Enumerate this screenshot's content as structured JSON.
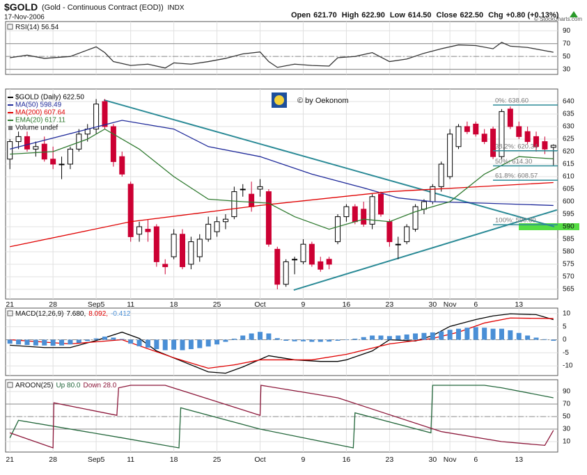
{
  "header": {
    "symbol": "$GOLD",
    "name": "(Gold - Continuous Contract (EOD))",
    "exchange": "INDX",
    "date": "17-Nov-2006",
    "quote": [
      {
        "label": "Open",
        "value": "621.70"
      },
      {
        "label": "High",
        "value": "622.90"
      },
      {
        "label": "Low",
        "value": "614.50"
      },
      {
        "label": "Close",
        "value": "622.50"
      },
      {
        "label": "Chg",
        "value": "+0.80 (+0.13%)"
      }
    ],
    "copyright": "© StockCharts.com"
  },
  "chart_data": [
    {
      "type": "line",
      "title": "RSI(14) 56.54",
      "xlim": [
        -0.5,
        63.5
      ],
      "ylim": [
        22,
        104.4
      ],
      "yticks": [
        90,
        70,
        50,
        30
      ],
      "bands": [
        70,
        30
      ],
      "midline": 50,
      "grid": true,
      "series": [
        {
          "color": "#333333",
          "x": [
            0,
            2,
            4,
            7,
            9,
            10,
            11,
            12,
            14,
            16,
            18,
            19,
            21,
            23,
            25,
            27,
            29,
            30,
            31,
            33,
            35,
            37,
            38,
            40,
            42,
            44,
            46,
            48,
            50,
            52,
            54,
            56,
            57,
            58,
            60,
            63
          ],
          "values": [
            48,
            52,
            47,
            50,
            60,
            65,
            56,
            42,
            36,
            38,
            32,
            40,
            38,
            42,
            47,
            54,
            57,
            42,
            33,
            38,
            36,
            35,
            48,
            50,
            56,
            42,
            46,
            55,
            62,
            68,
            67,
            62,
            72,
            66,
            64,
            56.54
          ]
        }
      ]
    },
    {
      "type": "candlestick",
      "xlim": [
        -0.5,
        63.5
      ],
      "ylim": [
        561.1,
        645
      ],
      "yticks": [
        565,
        570,
        575,
        580,
        585,
        590,
        595,
        600,
        605,
        610,
        615,
        620,
        625,
        630,
        635,
        640
      ],
      "grid": true,
      "categories": [
        "21",
        null,
        null,
        null,
        null,
        "28",
        null,
        null,
        null,
        null,
        "Sep5",
        null,
        null,
        null,
        "11",
        null,
        null,
        null,
        null,
        "18",
        null,
        null,
        null,
        null,
        "25",
        null,
        null,
        null,
        null,
        "Oct",
        null,
        null,
        null,
        null,
        "9",
        null,
        null,
        null,
        null,
        "16",
        null,
        null,
        null,
        null,
        "23",
        null,
        null,
        null,
        null,
        "30",
        null,
        "Nov",
        null,
        null,
        "6",
        null,
        null,
        null,
        null,
        "13",
        null,
        null,
        null,
        null
      ],
      "series": [
        {
          "name": "$GOLD (Daily) 622.50",
          "color": "#000000",
          "up_color": "#000000",
          "down_color": "#cc0033",
          "open": [
            617,
            624,
            626,
            621,
            623,
            617,
            615,
            615,
            621,
            627,
            629,
            640,
            630,
            618,
            607,
            587,
            589,
            590,
            575,
            578,
            587,
            575,
            578,
            585,
            588,
            592,
            594,
            605,
            603,
            605,
            604,
            581,
            567,
            577,
            576,
            583,
            576,
            577,
            584,
            594,
            598,
            597,
            591,
            603,
            592,
            583,
            584,
            589,
            597,
            600,
            606,
            610,
            622,
            630,
            631,
            627,
            629,
            618,
            637,
            630,
            628,
            626,
            624,
            621.7
          ],
          "high": [
            625,
            628,
            628,
            624,
            626,
            622,
            618,
            622,
            629,
            631,
            641,
            641,
            631,
            620,
            608,
            592,
            593,
            591,
            577,
            589,
            589,
            586,
            587,
            594,
            594,
            595,
            606,
            607,
            608,
            609,
            605,
            582,
            577,
            578,
            585,
            584,
            578,
            578,
            595,
            599,
            599,
            600,
            603,
            604,
            593,
            586,
            591,
            599,
            601,
            607,
            616,
            629,
            631,
            632,
            632,
            629,
            630,
            637,
            638,
            632,
            630,
            628,
            626,
            622.9
          ],
          "low": [
            613,
            621,
            620,
            618,
            616,
            613,
            609,
            613,
            620,
            624,
            627,
            629,
            614,
            610,
            584,
            584,
            584,
            574,
            571,
            577,
            573,
            573,
            576,
            584,
            586,
            589,
            593,
            602,
            596,
            602,
            582,
            565,
            566,
            571,
            575,
            574,
            572,
            573,
            583,
            592,
            591,
            590,
            589,
            594,
            582,
            577,
            583,
            588,
            595,
            599,
            604,
            609,
            621,
            627,
            626,
            623,
            617,
            617,
            629,
            625,
            623,
            620,
            619,
            614.5
          ],
          "close": [
            624,
            626,
            621,
            622,
            617,
            615,
            615,
            621,
            627,
            629,
            639,
            630,
            616,
            611,
            586,
            590,
            588,
            576,
            574,
            587,
            574,
            584,
            585,
            591,
            592,
            593,
            604,
            605,
            598,
            606,
            583,
            567,
            576,
            577,
            583,
            575,
            573,
            575,
            594,
            598,
            592,
            591,
            602,
            595,
            584,
            583,
            590,
            598,
            600,
            606,
            615,
            627,
            630,
            628,
            627,
            624,
            618,
            636,
            630,
            626,
            624,
            622,
            621,
            622.5
          ]
        },
        {
          "name": "MA(50) 598.49",
          "color": "#1f2a9a",
          "x": [
            0,
            13,
            19,
            23,
            29,
            35,
            41,
            45,
            49,
            55,
            63
          ],
          "values": [
            621,
            632.5,
            629,
            622,
            618,
            611,
            605.5,
            601.5,
            600,
            599.4,
            598.49
          ]
        },
        {
          "name": "MA(200) 607.64",
          "color": "#e00000",
          "x": [
            0,
            14,
            29,
            44,
            63
          ],
          "values": [
            582,
            592,
            598.5,
            604,
            607.64
          ]
        },
        {
          "name": "EMA(20) 617.11",
          "color": "#2f7a2f",
          "x": [
            0,
            5,
            9,
            11,
            15,
            19,
            23,
            27,
            30,
            33,
            37,
            41,
            44,
            47,
            51,
            55,
            59,
            63
          ],
          "values": [
            619,
            620,
            625,
            629,
            621,
            610,
            601,
            600,
            599.4,
            594,
            589,
            593,
            592,
            596,
            600,
            611,
            618,
            617.11
          ]
        }
      ],
      "volume_label": "Volume undef",
      "trendlines": [
        {
          "color": "#2a8a96",
          "x": [
            10.9,
            63.1
          ],
          "values": [
            640.6,
            590
          ]
        },
        {
          "color": "#2a8a96",
          "x": [
            32.9,
            63.4
          ],
          "values": [
            564.7,
            596.7
          ]
        }
      ],
      "fibonacci": [
        {
          "value": 638.6,
          "label": "0%: 638.60"
        },
        {
          "value": 620.34,
          "label": "38.2%: 620.34"
        },
        {
          "value": 614.3,
          "label": "50%: 614.30"
        },
        {
          "value": 608.57,
          "label": "61.8%: 608.57"
        },
        {
          "value": 590.8,
          "label": "100%: 590.80"
        }
      ],
      "fib_color": "#2a8a96",
      "highlight": {
        "value": 590,
        "color": "#55dd44"
      },
      "watermark": "© by Oekonom"
    },
    {
      "type": "macd",
      "title": "MACD(12,26,9)",
      "xlim": [
        -0.5,
        63.5
      ],
      "ylim": [
        -13.7,
        12.1
      ],
      "yticks": [
        10,
        5,
        0,
        -5,
        -10
      ],
      "midline": 0,
      "grid": true,
      "series": [
        {
          "name": "7.680,",
          "color": "#000000",
          "x": [
            0,
            4,
            7,
            10,
            13,
            15,
            17,
            20,
            23,
            25,
            27,
            30,
            33,
            36,
            38,
            39,
            42,
            44,
            47,
            49,
            51,
            54,
            56,
            58,
            61,
            63
          ],
          "values": [
            -2.1,
            -3,
            -3,
            -0.3,
            2.9,
            0.5,
            -4.3,
            -8.3,
            -12.3,
            -12.8,
            -10.4,
            -6.1,
            -7.7,
            -8.3,
            -8.3,
            -7.7,
            -4.3,
            0,
            -0.5,
            1.6,
            5.1,
            7.7,
            9.1,
            9.9,
            9.6,
            7.68
          ]
        },
        {
          "name": "8.092,",
          "color": "#e00000",
          "x": [
            0,
            7,
            13,
            19,
            23,
            26,
            29,
            35,
            39,
            44,
            49,
            52,
            55,
            58,
            63
          ],
          "values": [
            0,
            -1.6,
            0,
            -6.9,
            -10.9,
            -9.6,
            -7.7,
            -7.7,
            -5.6,
            -1.6,
            0.5,
            2.9,
            6.4,
            8.3,
            8.092
          ]
        },
        {
          "name": "-0.412",
          "color": "#4a8fd6",
          "type": "bar",
          "values": [
            -1.5,
            -1.8,
            -2,
            -2.2,
            -2.2,
            -2.3,
            -2.2,
            -1.8,
            -1.2,
            -0.5,
            0.5,
            1.2,
            0.8,
            0.3,
            -1.5,
            -2.5,
            -3,
            -3.6,
            -4,
            -3.8,
            -4,
            -3.6,
            -3.2,
            -2.6,
            -1.8,
            -0.8,
            0.4,
            1.6,
            2.4,
            3,
            2.4,
            0.6,
            -0.4,
            -0.6,
            -0.6,
            -0.8,
            -0.8,
            -0.7,
            -0.4,
            0,
            0.4,
            1,
            1.6,
            1.6,
            1.4,
            1.6,
            2,
            2.4,
            2.6,
            2.8,
            3.2,
            3.8,
            4.2,
            4.6,
            4.8,
            4.6,
            4.2,
            4.2,
            3.6,
            2.6,
            1.6,
            0.8,
            0.2,
            -0.412
          ]
        }
      ]
    },
    {
      "type": "aroon",
      "title": "AROON(25)",
      "xlim": [
        -0.5,
        63.5
      ],
      "ylim": [
        -6.7,
        108.9
      ],
      "yticks": [
        90,
        70,
        50,
        30,
        10
      ],
      "bands": [
        70,
        30
      ],
      "midline": 50,
      "grid": true,
      "series": [
        {
          "name": "Up 80.0",
          "color": "#22663a",
          "x": [
            0,
            1,
            13,
            19.6,
            19.8,
            29,
            39.8,
            40,
            48.8,
            49,
            55,
            57,
            63
          ],
          "values": [
            16,
            44,
            16,
            0,
            64,
            30,
            0,
            56,
            24,
            100,
            100,
            96,
            80
          ]
        },
        {
          "name": "Down 28.0",
          "color": "#8b1538",
          "x": [
            0,
            5,
            5.1,
            12.4,
            12.6,
            14,
            18,
            29,
            29.1,
            38,
            50,
            57,
            62,
            63
          ],
          "values": [
            24,
            0,
            72,
            52,
            96,
            100,
            100,
            52,
            100,
            80,
            26,
            10,
            4,
            28
          ]
        }
      ]
    }
  ]
}
